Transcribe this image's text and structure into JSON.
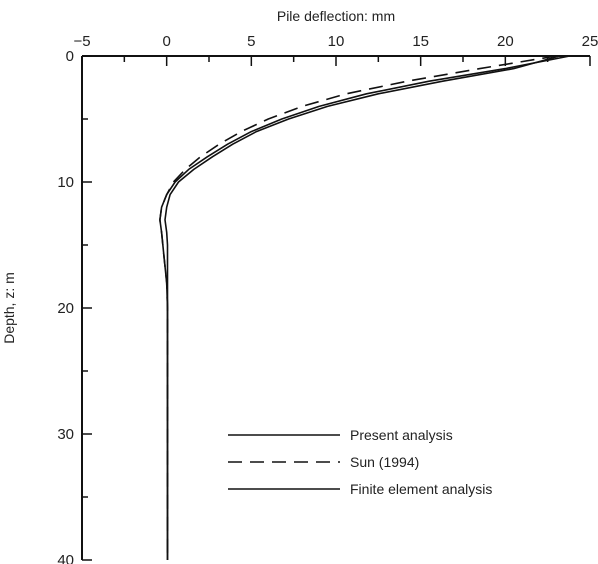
{
  "chart_data": {
    "type": "line",
    "title": "",
    "xlabel": "Pile deflection: mm",
    "ylabel": "Depth, z: m",
    "xlim": [
      -5,
      25
    ],
    "ylim": [
      0,
      40
    ],
    "y_inverted": true,
    "x_axis_position": "top",
    "x_ticks": [
      -5,
      0,
      5,
      10,
      15,
      20,
      25
    ],
    "x_tick_labels": [
      "−5",
      "0",
      "5",
      "10",
      "15",
      "20",
      "25"
    ],
    "y_ticks": [
      0,
      10,
      20,
      30,
      40
    ],
    "y_tick_labels": [
      "0",
      "10",
      "20",
      "30",
      "40"
    ],
    "grid": false,
    "legend_position": "bottom-center",
    "series": [
      {
        "name": "Present analysis",
        "style": "solid",
        "color": "#111111",
        "points": [
          [
            23.8,
            0
          ],
          [
            20,
            1
          ],
          [
            15.5,
            2
          ],
          [
            11.8,
            3
          ],
          [
            9,
            4
          ],
          [
            6.8,
            5
          ],
          [
            5,
            6
          ],
          [
            3.6,
            7
          ],
          [
            2.4,
            8
          ],
          [
            1.3,
            9
          ],
          [
            0.5,
            10
          ],
          [
            0,
            11
          ],
          [
            -0.3,
            12
          ],
          [
            -0.4,
            13
          ],
          [
            -0.3,
            14
          ],
          [
            -0.15,
            16
          ],
          [
            0,
            18
          ],
          [
            0.05,
            20
          ],
          [
            0.05,
            25
          ],
          [
            0.05,
            30
          ],
          [
            0.05,
            35
          ],
          [
            0.05,
            40
          ]
        ]
      },
      {
        "name": "Sun (1994)",
        "style": "dashed",
        "color": "#111111",
        "points": [
          [
            23,
            0
          ],
          [
            18.5,
            1
          ],
          [
            14.2,
            2
          ],
          [
            10.6,
            3
          ],
          [
            8,
            4
          ],
          [
            6,
            5
          ],
          [
            4.4,
            6
          ],
          [
            3.1,
            7
          ],
          [
            2,
            8
          ],
          [
            1.1,
            9
          ],
          [
            0.4,
            10
          ],
          [
            0,
            11
          ],
          [
            -0.3,
            12
          ],
          [
            -0.4,
            13
          ],
          [
            -0.3,
            14
          ],
          [
            -0.15,
            16
          ],
          [
            0,
            18
          ],
          [
            0.05,
            20
          ],
          [
            0.05,
            25
          ],
          [
            0.05,
            30
          ],
          [
            0.05,
            35
          ],
          [
            0.05,
            40
          ]
        ]
      },
      {
        "name": "Finite element analysis",
        "style": "solid",
        "color": "#111111",
        "points": [
          [
            23.2,
            0
          ],
          [
            20.5,
            1
          ],
          [
            16.3,
            2
          ],
          [
            12.5,
            3
          ],
          [
            9.5,
            4
          ],
          [
            7.2,
            5
          ],
          [
            5.3,
            6
          ],
          [
            3.9,
            7
          ],
          [
            2.7,
            8
          ],
          [
            1.6,
            9
          ],
          [
            0.7,
            10
          ],
          [
            0.2,
            11
          ],
          [
            0,
            12
          ],
          [
            -0.1,
            13
          ],
          [
            0,
            14
          ],
          [
            0.05,
            15
          ],
          [
            0.05,
            20
          ],
          [
            0.05,
            25
          ],
          [
            0.05,
            30
          ],
          [
            0.05,
            35
          ],
          [
            0.05,
            40
          ]
        ]
      }
    ]
  }
}
